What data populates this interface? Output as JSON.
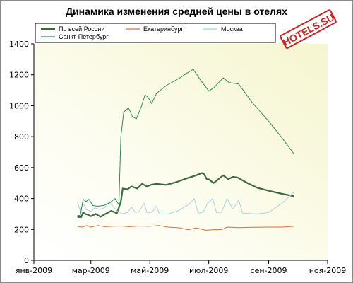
{
  "chart_data": {
    "type": "line",
    "title": "Динамика изменения средней цены в отелях",
    "watermark": "HOTELS.SU",
    "ylim": [
      0,
      1400
    ],
    "y_ticks": [
      0,
      200,
      400,
      600,
      800,
      1000,
      1200,
      1400
    ],
    "x_range": [
      "2009-01-01",
      "2009-11-01"
    ],
    "x_ticks": [
      {
        "date": "2009-01-01",
        "label": "янв-2009"
      },
      {
        "date": "2009-03-01",
        "label": "мар-2009"
      },
      {
        "date": "2009-05-01",
        "label": "май-2009"
      },
      {
        "date": "2009-07-01",
        "label": "июл-2009"
      },
      {
        "date": "2009-09-01",
        "label": "сен-2009"
      },
      {
        "date": "2009-11-01",
        "label": "ноя-2009"
      }
    ],
    "grid": false,
    "legend_position": "top",
    "series": [
      {
        "name": "По всей России",
        "color": "#3f6a3f",
        "width": 2.2,
        "points": [
          [
            "2009-02-15",
            280
          ],
          [
            "2009-02-19",
            280
          ],
          [
            "2009-02-21",
            310
          ],
          [
            "2009-02-23",
            300
          ],
          [
            "2009-02-26",
            295
          ],
          [
            "2009-03-01",
            285
          ],
          [
            "2009-03-06",
            300
          ],
          [
            "2009-03-11",
            282
          ],
          [
            "2009-03-16",
            300
          ],
          [
            "2009-03-22",
            320
          ],
          [
            "2009-03-28",
            305
          ],
          [
            "2009-04-01",
            380
          ],
          [
            "2009-04-03",
            465
          ],
          [
            "2009-04-08",
            460
          ],
          [
            "2009-04-12",
            478
          ],
          [
            "2009-04-18",
            465
          ],
          [
            "2009-04-23",
            495
          ],
          [
            "2009-04-28",
            478
          ],
          [
            "2009-05-03",
            490
          ],
          [
            "2009-05-08",
            495
          ],
          [
            "2009-05-18",
            488
          ],
          [
            "2009-05-28",
            505
          ],
          [
            "2009-06-08",
            530
          ],
          [
            "2009-06-18",
            550
          ],
          [
            "2009-06-24",
            565
          ],
          [
            "2009-06-26",
            560
          ],
          [
            "2009-06-29",
            525
          ],
          [
            "2009-07-01",
            525
          ],
          [
            "2009-07-06",
            500
          ],
          [
            "2009-07-11",
            525
          ],
          [
            "2009-07-16",
            550
          ],
          [
            "2009-07-21",
            525
          ],
          [
            "2009-07-26",
            540
          ],
          [
            "2009-07-31",
            535
          ],
          [
            "2009-08-10",
            500
          ],
          [
            "2009-08-20",
            470
          ],
          [
            "2009-09-01",
            450
          ],
          [
            "2009-09-15",
            430
          ],
          [
            "2009-09-27",
            415
          ]
        ]
      },
      {
        "name": "Екатеринбург",
        "color": "#d2733a",
        "width": 1,
        "points": [
          [
            "2009-02-15",
            220
          ],
          [
            "2009-02-20",
            215
          ],
          [
            "2009-02-25",
            225
          ],
          [
            "2009-03-01",
            215
          ],
          [
            "2009-03-08",
            225
          ],
          [
            "2009-03-15",
            218
          ],
          [
            "2009-03-22",
            220
          ],
          [
            "2009-04-01",
            222
          ],
          [
            "2009-04-10",
            218
          ],
          [
            "2009-04-20",
            222
          ],
          [
            "2009-05-01",
            220
          ],
          [
            "2009-05-10",
            225
          ],
          [
            "2009-05-20",
            215
          ],
          [
            "2009-06-01",
            210
          ],
          [
            "2009-06-10",
            198
          ],
          [
            "2009-06-18",
            210
          ],
          [
            "2009-06-28",
            195
          ],
          [
            "2009-07-05",
            198
          ],
          [
            "2009-07-15",
            200
          ],
          [
            "2009-07-20",
            215
          ],
          [
            "2009-08-01",
            212
          ],
          [
            "2009-08-15",
            214
          ],
          [
            "2009-09-01",
            215
          ],
          [
            "2009-09-15",
            215
          ],
          [
            "2009-09-27",
            220
          ]
        ]
      },
      {
        "name": "Москва",
        "color": "#a8d4e0",
        "width": 1,
        "points": [
          [
            "2009-02-15",
            380
          ],
          [
            "2009-02-18",
            320
          ],
          [
            "2009-02-21",
            370
          ],
          [
            "2009-02-24",
            330
          ],
          [
            "2009-03-01",
            315
          ],
          [
            "2009-03-05",
            340
          ],
          [
            "2009-03-10",
            330
          ],
          [
            "2009-03-15",
            340
          ],
          [
            "2009-03-20",
            380
          ],
          [
            "2009-03-25",
            340
          ],
          [
            "2009-03-30",
            310
          ],
          [
            "2009-04-03",
            300
          ],
          [
            "2009-04-08",
            310
          ],
          [
            "2009-04-12",
            345
          ],
          [
            "2009-04-16",
            310
          ],
          [
            "2009-04-20",
            315
          ],
          [
            "2009-04-25",
            370
          ],
          [
            "2009-04-28",
            310
          ],
          [
            "2009-05-03",
            310
          ],
          [
            "2009-05-08",
            350
          ],
          [
            "2009-05-11",
            300
          ],
          [
            "2009-05-20",
            300
          ],
          [
            "2009-05-30",
            320
          ],
          [
            "2009-06-10",
            360
          ],
          [
            "2009-06-16",
            400
          ],
          [
            "2009-06-20",
            305
          ],
          [
            "2009-06-25",
            310
          ],
          [
            "2009-06-30",
            370
          ],
          [
            "2009-07-05",
            400
          ],
          [
            "2009-07-09",
            310
          ],
          [
            "2009-07-14",
            310
          ],
          [
            "2009-07-20",
            400
          ],
          [
            "2009-07-26",
            330
          ],
          [
            "2009-08-01",
            390
          ],
          [
            "2009-08-05",
            305
          ],
          [
            "2009-08-20",
            300
          ],
          [
            "2009-09-01",
            310
          ],
          [
            "2009-09-15",
            370
          ],
          [
            "2009-09-27",
            440
          ]
        ]
      },
      {
        "name": "Санкт-Петербург",
        "color": "#2d8a5c",
        "width": 1,
        "points": [
          [
            "2009-02-15",
            290
          ],
          [
            "2009-02-18",
            290
          ],
          [
            "2009-02-21",
            395
          ],
          [
            "2009-02-24",
            380
          ],
          [
            "2009-02-27",
            395
          ],
          [
            "2009-03-03",
            355
          ],
          [
            "2009-03-08",
            350
          ],
          [
            "2009-03-14",
            355
          ],
          [
            "2009-03-20",
            370
          ],
          [
            "2009-03-26",
            400
          ],
          [
            "2009-03-30",
            360
          ],
          [
            "2009-04-01",
            800
          ],
          [
            "2009-04-04",
            960
          ],
          [
            "2009-04-09",
            985
          ],
          [
            "2009-04-13",
            930
          ],
          [
            "2009-04-17",
            915
          ],
          [
            "2009-04-22",
            990
          ],
          [
            "2009-04-26",
            1070
          ],
          [
            "2009-04-29",
            1055
          ],
          [
            "2009-05-03",
            1015
          ],
          [
            "2009-05-08",
            1080
          ],
          [
            "2009-05-18",
            1130
          ],
          [
            "2009-06-01",
            1180
          ],
          [
            "2009-06-12",
            1225
          ],
          [
            "2009-06-15",
            1235
          ],
          [
            "2009-06-22",
            1170
          ],
          [
            "2009-07-01",
            1095
          ],
          [
            "2009-07-06",
            1115
          ],
          [
            "2009-07-16",
            1180
          ],
          [
            "2009-07-22",
            1150
          ],
          [
            "2009-08-01",
            1140
          ],
          [
            "2009-08-15",
            1020
          ],
          [
            "2009-09-01",
            900
          ],
          [
            "2009-09-15",
            790
          ],
          [
            "2009-09-27",
            690
          ]
        ]
      }
    ]
  }
}
